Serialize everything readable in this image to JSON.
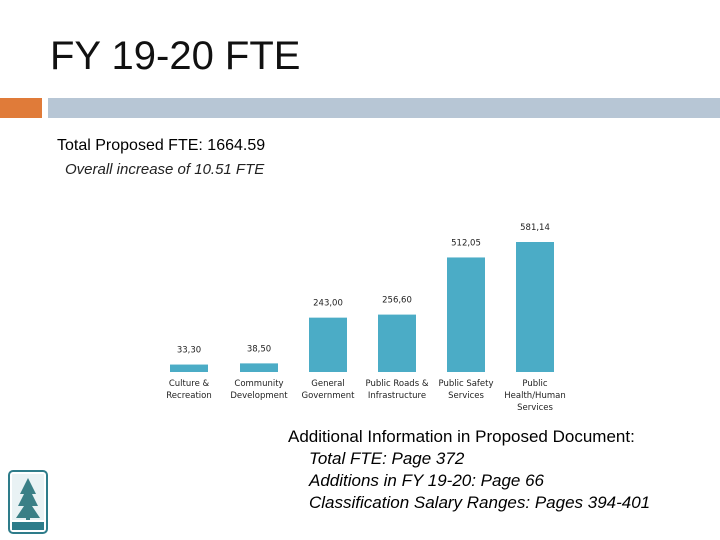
{
  "slide": {
    "title": "FY 19-20 FTE",
    "subtitle": "Total Proposed FTE: 1664.59",
    "subsubtitle": "Overall increase of 10.51 FTE",
    "info_heading": "Additional Information in Proposed Document:",
    "info_lines": [
      "Total FTE: Page 372",
      "Additions in FY 19-20: Page 66",
      "Classification Salary Ranges: Pages 394-401"
    ]
  },
  "colors": {
    "accent_orange": "#E07B39",
    "header_bar": "#B7C6D5",
    "bar_fill": "#4BACC6"
  },
  "chart_data": {
    "type": "bar",
    "categories": [
      [
        "Culture &",
        "Recreation"
      ],
      [
        "Community",
        "Development"
      ],
      [
        "General",
        "Government"
      ],
      [
        "Public Roads &",
        "Infrastructure"
      ],
      [
        "Public Safety",
        "Services"
      ],
      [
        "Public",
        "Health/Human",
        "Services"
      ]
    ],
    "values": [
      33.3,
      38.5,
      243.0,
      256.6,
      512.05,
      581.14
    ],
    "value_labels": [
      "33,30",
      "38,50",
      "243,00",
      "256,60",
      "512,05",
      "581,14"
    ]
  }
}
